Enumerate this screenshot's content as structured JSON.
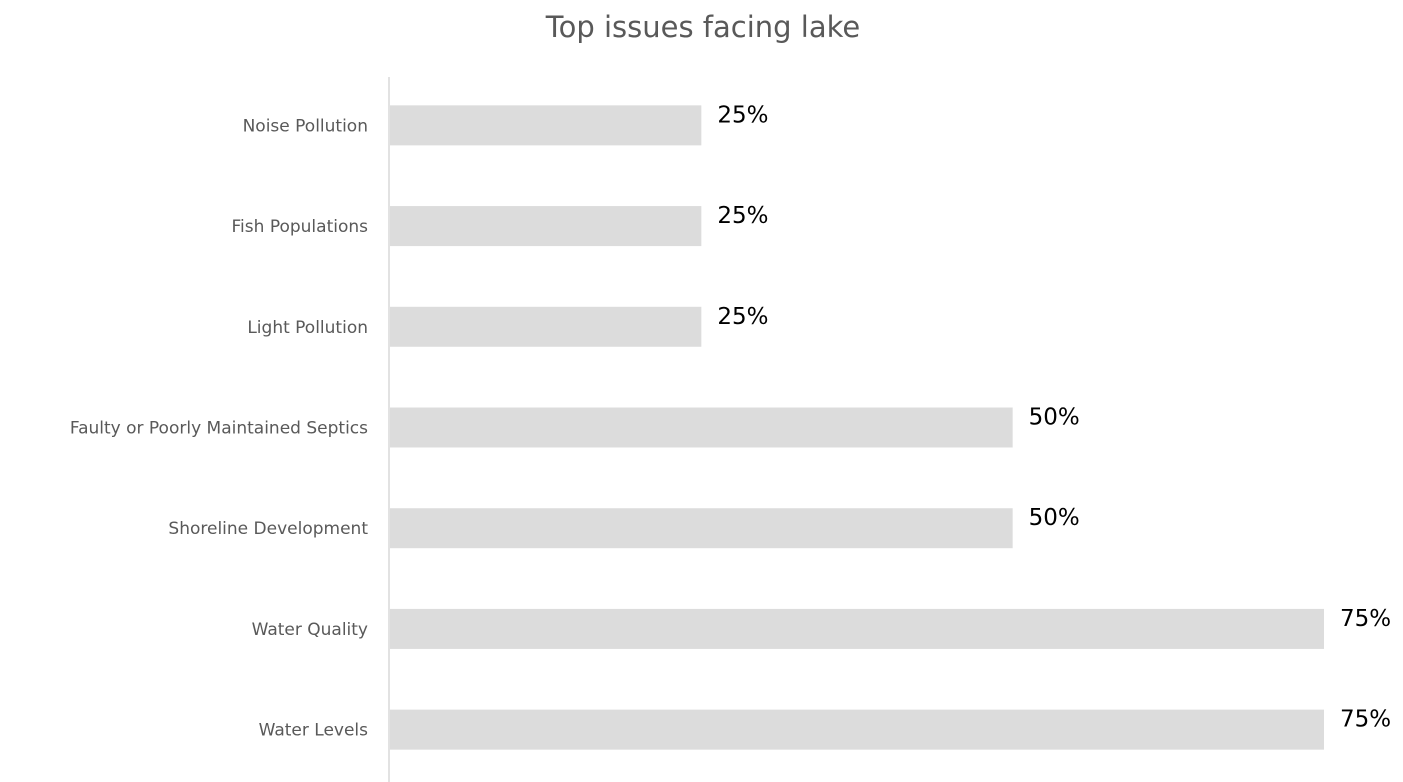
{
  "colors": {
    "bar": "#dcdcdc",
    "axis": "#d9d9d9",
    "title": "#595959",
    "category_label": "#595959",
    "data_label": "#000000",
    "background": "#ffffff"
  },
  "chart_data": {
    "type": "bar",
    "orientation": "horizontal",
    "title": "Top issues facing lake",
    "xlabel": "",
    "ylabel": "",
    "xlim": [
      0,
      75
    ],
    "grid": false,
    "legend": "none",
    "categories": [
      "Noise Pollution",
      "Fish Populations",
      "Light Pollution",
      "Faulty or Poorly Maintained Septics",
      "Shoreline Development",
      "Water Quality",
      "Water Levels"
    ],
    "values": [
      25,
      25,
      25,
      50,
      50,
      75,
      75
    ],
    "data_labels": [
      "25%",
      "25%",
      "25%",
      "50%",
      "50%",
      "75%",
      "75%"
    ]
  }
}
